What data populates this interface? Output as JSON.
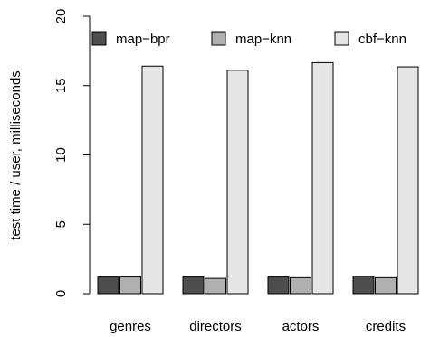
{
  "chart_data": {
    "type": "bar",
    "title": "",
    "xlabel": "",
    "ylabel": "test time / user, milliseconds",
    "ylim": [
      0,
      20
    ],
    "yticks": [
      0,
      5,
      10,
      15,
      20
    ],
    "grid": false,
    "legend_position": "top",
    "categories": [
      "genres",
      "directors",
      "actors",
      "credits"
    ],
    "series": [
      {
        "name": "map−bpr",
        "color": "#4d4d4d",
        "values": [
          1.2,
          1.2,
          1.2,
          1.25
        ]
      },
      {
        "name": "map−knn",
        "color": "#b0b0b0",
        "values": [
          1.2,
          1.1,
          1.15,
          1.15
        ]
      },
      {
        "name": "cbf−knn",
        "color": "#e6e6e6",
        "values": [
          16.4,
          16.1,
          16.65,
          16.35
        ]
      }
    ]
  }
}
